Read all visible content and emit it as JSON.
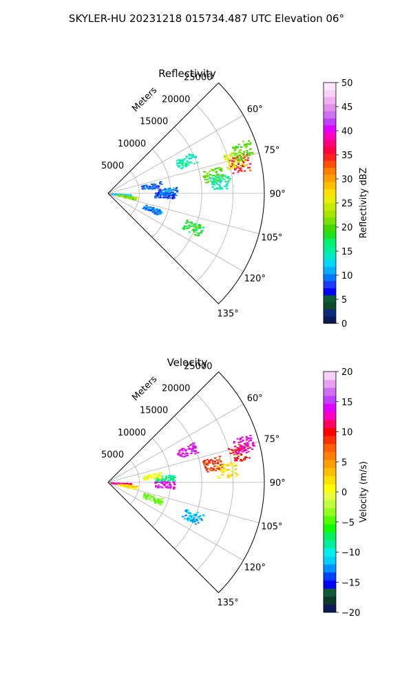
{
  "title": "SKYLER-HU  20231218  015734.487 UTC Elevation 06°",
  "chart_data": [
    {
      "type": "polar-sector",
      "title": "Reflectivity",
      "radial_label": "Meters",
      "r_ticks": [
        5000,
        10000,
        15000,
        20000,
        25000
      ],
      "theta_ticks": [
        "60°",
        "75°",
        "90°",
        "105°",
        "120°",
        "135°"
      ],
      "theta_range_deg": [
        45,
        135
      ],
      "r_max": 25000,
      "colorbar": {
        "label": "Reflectivity dBZ",
        "range": [
          0,
          50
        ],
        "ticks": [
          "0",
          "5",
          "10",
          "15",
          "20",
          "25",
          "30",
          "35",
          "40",
          "45",
          "50"
        ]
      },
      "echoes": [
        {
          "az": 77,
          "r": 21500,
          "value": 35
        },
        {
          "az": 75,
          "r": 21000,
          "value": 25
        },
        {
          "az": 72,
          "r": 22500,
          "value": 20
        },
        {
          "az": 80,
          "r": 17000,
          "value": 20
        },
        {
          "az": 84,
          "r": 18000,
          "value": 15
        },
        {
          "az": 67,
          "r": 13500,
          "value": 15
        },
        {
          "az": 88,
          "r": 9500,
          "value": 10
        },
        {
          "az": 80,
          "r": 7000,
          "value": 9
        },
        {
          "az": 92,
          "r": 9000,
          "value": 8
        },
        {
          "az": 110,
          "r": 7500,
          "value": 10
        },
        {
          "az": 112,
          "r": 14500,
          "value": 18
        },
        {
          "az": 95,
          "r": 2000,
          "value": 12
        },
        {
          "az": 100,
          "r": 3000,
          "value": 22
        }
      ]
    },
    {
      "type": "polar-sector",
      "title": "Velocity",
      "radial_label": "Meters",
      "r_ticks": [
        5000,
        10000,
        15000,
        20000,
        25000
      ],
      "theta_ticks": [
        "60°",
        "75°",
        "90°",
        "105°",
        "120°",
        "135°"
      ],
      "theta_range_deg": [
        45,
        135
      ],
      "r_max": 25000,
      "colorbar": {
        "label": "Velocity (m/s)",
        "range": [
          -20,
          20
        ],
        "ticks": [
          "−20",
          "−15",
          "−10",
          "−5",
          "0",
          "5",
          "10",
          "15",
          "20"
        ]
      },
      "echoes": [
        {
          "az": 77,
          "r": 21500,
          "value": 10
        },
        {
          "az": 74,
          "r": 22500,
          "value": 13
        },
        {
          "az": 80,
          "r": 17000,
          "value": 9
        },
        {
          "az": 84,
          "r": 19000,
          "value": 2
        },
        {
          "az": 68,
          "r": 13500,
          "value": 14
        },
        {
          "az": 86,
          "r": 9000,
          "value": -8
        },
        {
          "az": 82,
          "r": 7000,
          "value": 0
        },
        {
          "az": 92,
          "r": 9000,
          "value": 14
        },
        {
          "az": 110,
          "r": 7500,
          "value": -4
        },
        {
          "az": 112,
          "r": 14500,
          "value": -12
        },
        {
          "az": 95,
          "r": 2000,
          "value": 12
        },
        {
          "az": 100,
          "r": 3000,
          "value": 2
        }
      ]
    }
  ]
}
